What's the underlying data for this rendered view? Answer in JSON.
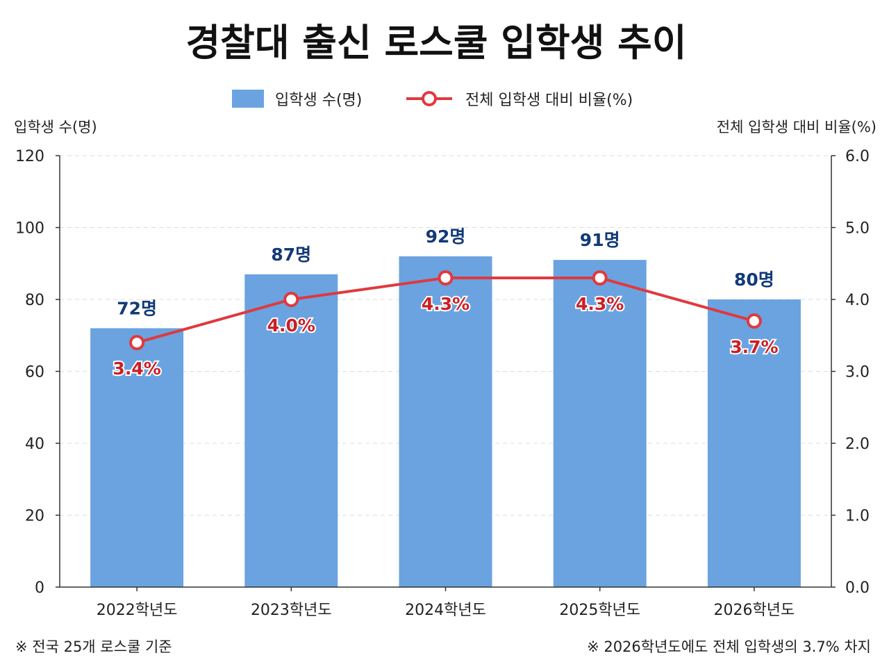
{
  "chart_data": {
    "type": "bar",
    "title": "경찰대 출신 로스쿨 입학생 추이",
    "categories": [
      "2022학년도",
      "2023학년도",
      "2024학년도",
      "2025학년도",
      "2026학년도"
    ],
    "series": [
      {
        "name": "입학생 수(명)",
        "type": "bar",
        "axis": "left",
        "values": [
          72,
          87,
          92,
          91,
          80
        ],
        "value_labels": [
          "72명",
          "87명",
          "92명",
          "91명",
          "80명"
        ],
        "color": "#6aa3e0"
      },
      {
        "name": "전체 입학생 대비 비율(%)",
        "type": "line",
        "axis": "right",
        "values": [
          3.4,
          4.0,
          4.3,
          4.3,
          3.7
        ],
        "value_labels": [
          "3.4%",
          "4.0%",
          "4.3%",
          "4.3%",
          "3.7%"
        ],
        "color": "#e0393e"
      }
    ],
    "y_left": {
      "label": "입학생 수(명)",
      "range": [
        0,
        120
      ],
      "ticks": [
        "0",
        "20",
        "40",
        "60",
        "80",
        "100",
        "120"
      ]
    },
    "y_right": {
      "label": "전체 입학생 대비 비율(%)",
      "range": [
        0,
        6
      ],
      "ticks": [
        "0.0",
        "1.0",
        "2.0",
        "3.0",
        "4.0",
        "5.0",
        "6.0"
      ]
    },
    "grid": true,
    "legend_position": "top-center"
  },
  "notes": {
    "left": "※ 전국 25개 로스쿨 기준",
    "right": "※ 2026학년도에도 전체 입학생의 3.7% 차지"
  },
  "colors": {
    "bar": "#6aa3e0",
    "line": "#e0393e",
    "bar_label": "#123a78",
    "pct_label": "#cc1f26"
  }
}
